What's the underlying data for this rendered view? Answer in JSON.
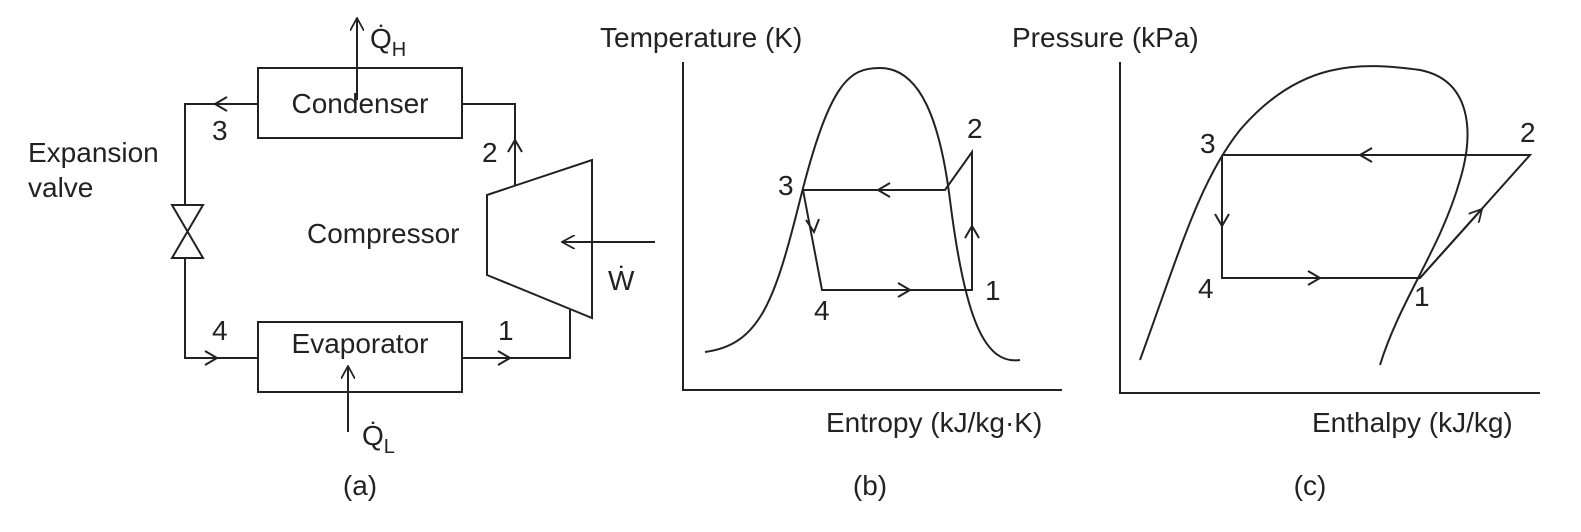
{
  "diagram_a": {
    "caption": "(a)",
    "heat_out": {
      "symbol": "Q̇",
      "subscript": "H"
    },
    "condenser": "Condenser",
    "evaporator": "Evaporator",
    "compressor": "Compressor",
    "expansion_valve": [
      "Expansion",
      "valve"
    ],
    "work": "Ẇ",
    "heat_in": {
      "symbol": "Q̇",
      "subscript": "L"
    },
    "state_labels": [
      "1",
      "2",
      "3",
      "4"
    ]
  },
  "diagram_b": {
    "caption": "(b)",
    "y_label": "Temperature (K)",
    "x_label": "Entropy (kJ/kg·K)",
    "state_labels": [
      "1",
      "2",
      "3",
      "4"
    ]
  },
  "diagram_c": {
    "caption": "(c)",
    "y_label": "Pressure (kPa)",
    "x_label": "Enthalpy (kJ/kg)",
    "state_labels": [
      "1",
      "2",
      "3",
      "4"
    ]
  }
}
